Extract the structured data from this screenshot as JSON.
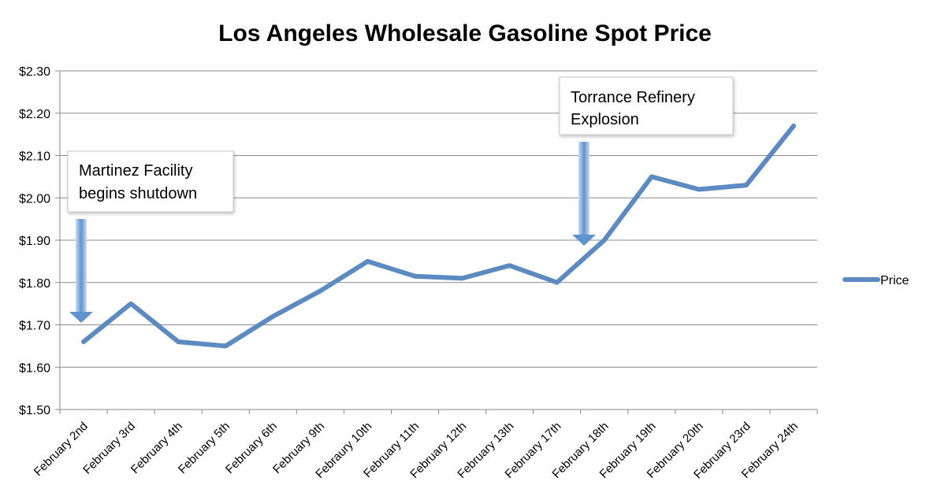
{
  "chart_data": {
    "type": "line",
    "title": "Los Angeles Wholesale Gasoline Spot Price",
    "categories": [
      "February 2nd",
      "February 3rd",
      "February 4th",
      "February 5th",
      "February 6th",
      "February 9th",
      "Febraury 10th",
      "February 11th",
      "February 12th",
      "February 13th",
      "February 17th",
      "February 18th",
      "February 19th",
      "February 20th",
      "February 23rd",
      "February 24th"
    ],
    "series": [
      {
        "name": "Price",
        "values": [
          1.66,
          1.75,
          1.66,
          1.65,
          1.72,
          1.78,
          1.85,
          1.815,
          1.81,
          1.84,
          1.8,
          1.9,
          2.05,
          2.02,
          2.03,
          2.17
        ]
      }
    ],
    "ylim": [
      1.5,
      2.3
    ],
    "yticks": [
      "$1.50",
      "$1.60",
      "$1.70",
      "$1.80",
      "$1.90",
      "$2.00",
      "$2.10",
      "$2.20",
      "$2.30"
    ],
    "ytick_values": [
      1.5,
      1.6,
      1.7,
      1.8,
      1.9,
      2.0,
      2.1,
      2.2,
      2.3
    ],
    "grid": true,
    "legend_position": "right",
    "line_color": "#5b8bc0",
    "annotations": [
      {
        "lines": [
          "Martinez Facility",
          "begins shutdown"
        ],
        "target_category": "February 2nd"
      },
      {
        "lines": [
          "Torrance Refinery",
          "Explosion"
        ],
        "target_category": "February 18th"
      }
    ]
  }
}
